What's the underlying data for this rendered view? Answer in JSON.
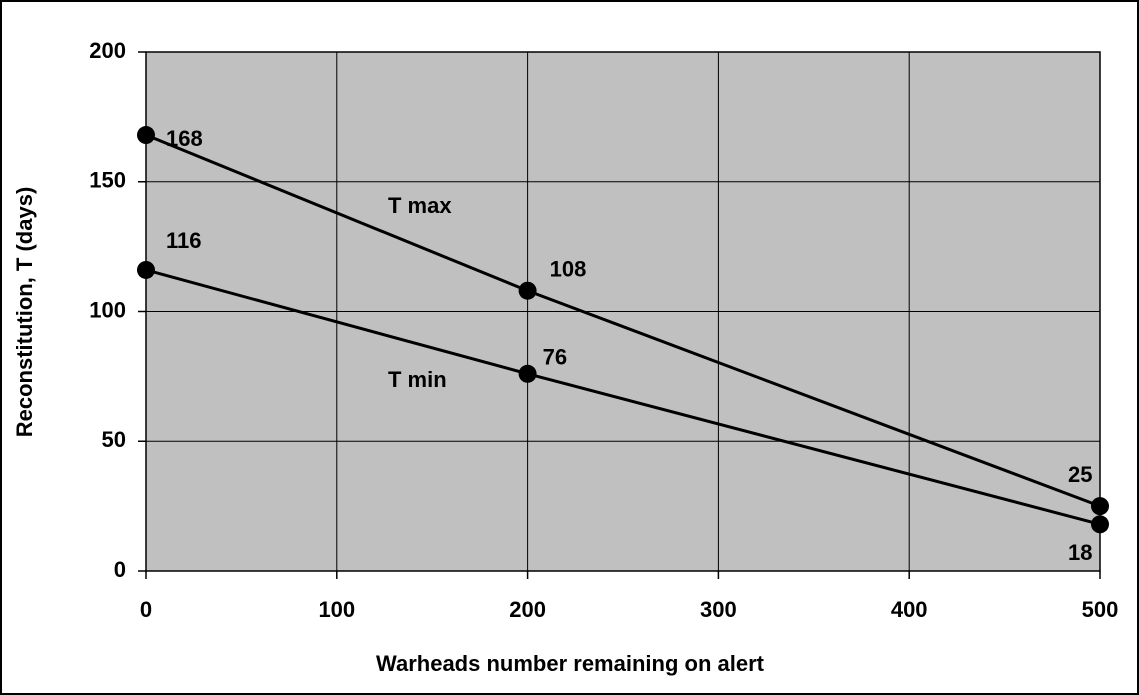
{
  "chart_data": {
    "type": "line",
    "x_label": "Warheads number remaining on alert",
    "y_label": "Reconstitution, T (days)",
    "x": [
      0,
      200,
      500
    ],
    "series": [
      {
        "name": "T max",
        "color": "#000000",
        "values": [
          168,
          108,
          25
        ]
      },
      {
        "name": "T min",
        "color": "#000000",
        "values": [
          116,
          76,
          18
        ]
      }
    ],
    "xlim": [
      0,
      500
    ],
    "xticks": [
      0,
      100,
      200,
      300,
      400,
      500
    ],
    "ylim": [
      0,
      200
    ],
    "yticks": [
      0,
      50,
      100,
      150,
      200
    ],
    "grid": true,
    "plot_background": "#c0c0c0"
  }
}
